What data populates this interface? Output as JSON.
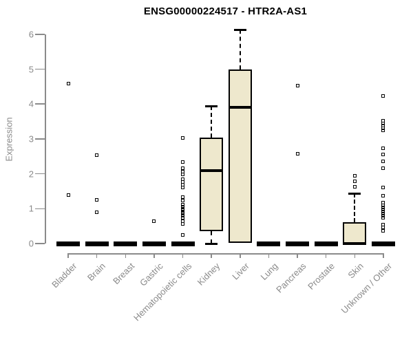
{
  "page_title": "ENSG00000224517 - HTR2A-AS1",
  "chart_data": {
    "type": "boxplot",
    "title": "ENSG00000224517 - HTR2A-AS1",
    "xlabel": "",
    "ylabel": "Expression",
    "ylim": [
      0,
      6
    ],
    "yticks": [
      0,
      1,
      2,
      3,
      4,
      5,
      6
    ],
    "grid": false,
    "legend_position": "none",
    "colors": {
      "box_fill": "#EEE8CD",
      "box_border": "#000000",
      "median": "#000000",
      "axis": "#8A8A8A",
      "tick_label": "#8A8A8A",
      "title": "#000000",
      "background": "#FFFFFF"
    },
    "categories": [
      "Bladder",
      "Brain",
      "Breast",
      "Gastric",
      "Hematopoietic cells",
      "Kidney",
      "Liver",
      "Lung",
      "Pancreas",
      "Prostate",
      "Skin",
      "Unknown / Other"
    ],
    "boxes": [
      {
        "category": "Bladder",
        "q1": 0,
        "median": 0,
        "q3": 0,
        "whisker_low": 0,
        "whisker_high": 0,
        "outliers": [
          4.58,
          1.4
        ]
      },
      {
        "category": "Brain",
        "q1": 0,
        "median": 0,
        "q3": 0,
        "whisker_low": 0,
        "whisker_high": 0,
        "outliers": [
          2.53,
          1.25,
          0.9
        ]
      },
      {
        "category": "Breast",
        "q1": 0,
        "median": 0,
        "q3": 0,
        "whisker_low": 0,
        "whisker_high": 0,
        "outliers": []
      },
      {
        "category": "Gastric",
        "q1": 0,
        "median": 0,
        "q3": 0,
        "whisker_low": 0,
        "whisker_high": 0,
        "outliers": [
          0.64
        ]
      },
      {
        "category": "Hematopoietic cells",
        "q1": 0,
        "median": 0,
        "q3": 0,
        "whisker_low": 0,
        "whisker_high": 0,
        "outliers": [
          3.02,
          2.33,
          2.15,
          2.07,
          1.98,
          1.84,
          1.76,
          1.68,
          1.6,
          1.33,
          1.24,
          1.12,
          1.06,
          1.0,
          0.95,
          0.9,
          0.85,
          0.79,
          0.73,
          0.64,
          0.56,
          0.24
        ]
      },
      {
        "category": "Kidney",
        "q1": 0.35,
        "median": 2.1,
        "q3": 3.04,
        "whisker_low": 0,
        "whisker_high": 3.94,
        "outliers": []
      },
      {
        "category": "Liver",
        "q1": 0.02,
        "median": 3.91,
        "q3": 4.99,
        "whisker_low": 0.02,
        "whisker_high": 6.13,
        "outliers": []
      },
      {
        "category": "Lung",
        "q1": 0,
        "median": 0,
        "q3": 0,
        "whisker_low": 0,
        "whisker_high": 0,
        "outliers": []
      },
      {
        "category": "Pancreas",
        "q1": 0,
        "median": 0,
        "q3": 0,
        "whisker_low": 0,
        "whisker_high": 0,
        "outliers": [
          4.52,
          2.57
        ]
      },
      {
        "category": "Prostate",
        "q1": 0,
        "median": 0,
        "q3": 0,
        "whisker_low": 0,
        "whisker_high": 0,
        "outliers": []
      },
      {
        "category": "Skin",
        "q1": 0,
        "median": 0,
        "q3": 0.61,
        "whisker_low": 0,
        "whisker_high": 1.43,
        "outliers": [
          1.95,
          1.78,
          1.63
        ]
      },
      {
        "category": "Unknown / Other",
        "q1": 0,
        "median": 0,
        "q3": 0,
        "whisker_low": 0,
        "whisker_high": 0,
        "outliers": [
          4.23,
          3.52,
          3.45,
          3.38,
          3.31,
          3.24,
          2.74,
          2.55,
          2.35,
          2.15,
          1.6,
          1.37,
          1.17,
          1.1,
          1.04,
          0.98,
          0.92,
          0.86,
          0.8,
          0.74,
          0.55,
          0.46,
          0.36
        ]
      }
    ]
  }
}
